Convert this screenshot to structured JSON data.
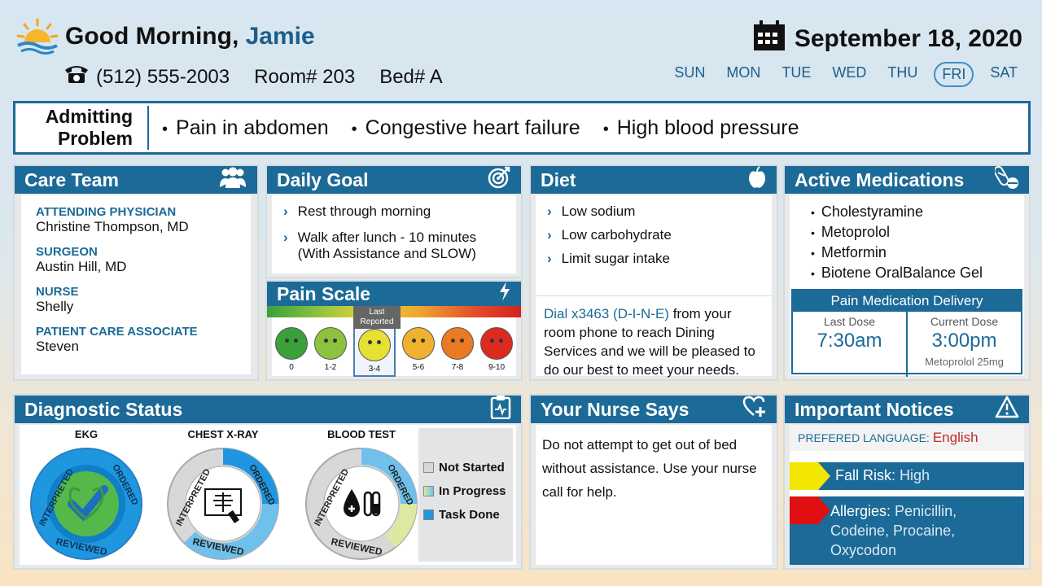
{
  "header": {
    "greeting": "Good Morning,",
    "name": "Jamie",
    "phone": "(512) 555-2003",
    "room": "Room# 203",
    "bed": "Bed# A",
    "date": "September 18, 2020",
    "days": [
      "SUN",
      "MON",
      "TUE",
      "WED",
      "THU",
      "FRI",
      "SAT"
    ],
    "today": "FRI"
  },
  "admitting": {
    "label": "Admitting Problem",
    "problems": [
      "Pain in abdomen",
      "Congestive heart failure",
      "High blood pressure"
    ]
  },
  "care_team": {
    "title": "Care Team",
    "members": [
      {
        "role": "ATTENDING PHYSICIAN",
        "name": "Christine Thompson, MD"
      },
      {
        "role": "SURGEON",
        "name": "Austin Hill, MD"
      },
      {
        "role": "NURSE",
        "name": "Shelly"
      },
      {
        "role": "PATIENT CARE ASSOCIATE",
        "name": "Steven"
      }
    ]
  },
  "daily_goal": {
    "title": "Daily Goal",
    "items": [
      "Rest through morning",
      "Walk after lunch - 10 minutes (With Assistance and SLOW)"
    ]
  },
  "pain_scale": {
    "title": "Pain Scale",
    "last_reported": "Last Reported",
    "levels": [
      "0",
      "1-2",
      "3-4",
      "5-6",
      "7-8",
      "9-10"
    ],
    "colors": [
      "#3aa03a",
      "#8cc23d",
      "#e7e034",
      "#f0b12f",
      "#ec7a22",
      "#dc2a1e"
    ],
    "selected_index": 2
  },
  "diet": {
    "title": "Diet",
    "items": [
      "Low sodium",
      "Low carbohydrate",
      "Limit sugar intake"
    ],
    "dial_link": "Dial x3463 (D-I-N-E)",
    "dial_text": " from your room phone to reach Dining Services and we will be pleased to do our best to meet your needs."
  },
  "medications": {
    "title": "Active Medications",
    "items": [
      "Cholestyramine",
      "Metoprolol",
      "Metformin",
      "Biotene OralBalance Gel"
    ],
    "delivery_title": "Pain Medication Delivery",
    "last_dose_label": "Last Dose",
    "last_dose": "7:30am",
    "current_dose_label": "Current Dose",
    "current_dose": "3:00pm",
    "current_med": "Metoprolol 25mg"
  },
  "diagnostic": {
    "title": "Diagnostic Status",
    "tests": [
      {
        "name": "EKG",
        "status": "Task Done"
      },
      {
        "name": "CHEST X-RAY",
        "status": "In Progress"
      },
      {
        "name": "BLOOD TEST",
        "status": "In Progress"
      }
    ],
    "ring_labels": {
      "interpreted": "INTERPRETED",
      "ordered": "ORDERED",
      "reviewed": "REVIEWED"
    },
    "legend": [
      "Not Started",
      "In Progress",
      "Task Done"
    ]
  },
  "nurse_says": {
    "title": "Your Nurse Says",
    "text": "Do not attempt to get out of bed without assistance.  Use your nurse call for help."
  },
  "notices": {
    "title": "Important Notices",
    "language_label": "PREFERED LANGUAGE:",
    "language": "English",
    "fall_label": "Fall Risk:",
    "fall_value": "High",
    "allergies_label": "Allergies:",
    "allergies_value": "Penicillin, Codeine, Procaine, Oxycodon"
  },
  "colors": {
    "primary": "#1c6a97",
    "accent_red": "#c0282a",
    "fall_flag": "#f2e600",
    "allergy_flag": "#e01010"
  }
}
